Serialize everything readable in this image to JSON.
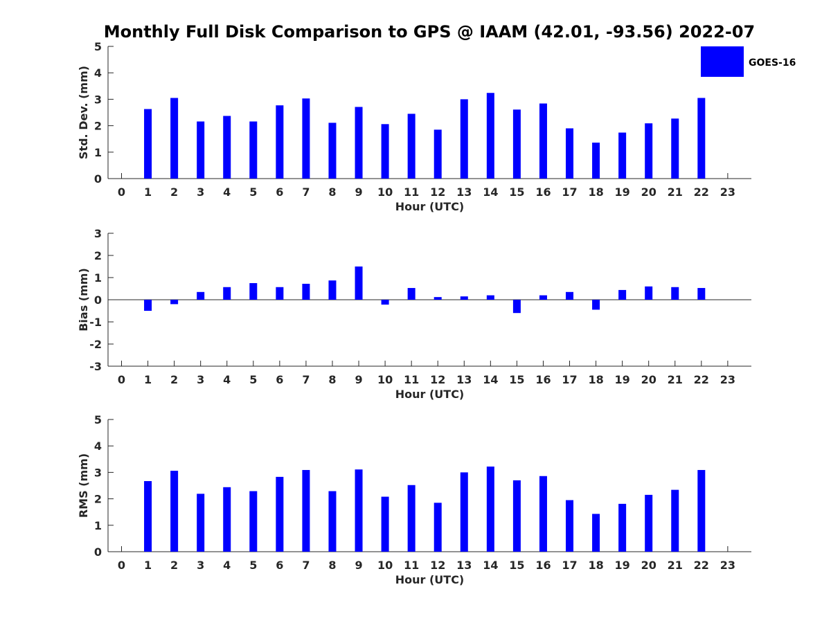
{
  "title": "Monthly Full Disk Comparison to GPS @ IAAM (42.01, -93.56) 2022-07",
  "legend": {
    "label": "GOES-16",
    "color": "#0000ff"
  },
  "chart_data": [
    {
      "type": "bar",
      "id": "stddev",
      "xlabel": "Hour (UTC)",
      "ylabel": "Std. Dev. (mm)",
      "ylim": [
        0,
        5
      ],
      "yticks": [
        0,
        1,
        2,
        3,
        4,
        5
      ],
      "categories": [
        0,
        1,
        2,
        3,
        4,
        5,
        6,
        7,
        8,
        9,
        10,
        11,
        12,
        13,
        14,
        15,
        16,
        17,
        18,
        19,
        20,
        21,
        22,
        23
      ],
      "series": [
        {
          "name": "GOES-16",
          "values": [
            null,
            2.63,
            3.05,
            2.16,
            2.37,
            2.16,
            2.77,
            3.03,
            2.11,
            2.71,
            2.06,
            2.45,
            1.85,
            3.0,
            3.24,
            2.61,
            2.84,
            1.9,
            1.36,
            1.74,
            2.09,
            2.27,
            3.05,
            null
          ]
        }
      ]
    },
    {
      "type": "bar",
      "id": "bias",
      "xlabel": "Hour (UTC)",
      "ylabel": "Bias (mm)",
      "ylim": [
        -3,
        3
      ],
      "yticks": [
        -3,
        -2,
        -1,
        0,
        1,
        2,
        3
      ],
      "zero_line": true,
      "categories": [
        0,
        1,
        2,
        3,
        4,
        5,
        6,
        7,
        8,
        9,
        10,
        11,
        12,
        13,
        14,
        15,
        16,
        17,
        18,
        19,
        20,
        21,
        22,
        23
      ],
      "series": [
        {
          "name": "GOES-16",
          "values": [
            null,
            -0.5,
            -0.2,
            0.35,
            0.57,
            0.75,
            0.57,
            0.72,
            0.87,
            1.5,
            -0.22,
            0.53,
            0.12,
            0.15,
            0.2,
            -0.6,
            0.2,
            0.35,
            -0.45,
            0.44,
            0.6,
            0.57,
            0.53,
            null
          ]
        }
      ]
    },
    {
      "type": "bar",
      "id": "rms",
      "xlabel": "Hour (UTC)",
      "ylabel": "RMS (mm)",
      "ylim": [
        0,
        5
      ],
      "yticks": [
        0,
        1,
        2,
        3,
        4,
        5
      ],
      "categories": [
        0,
        1,
        2,
        3,
        4,
        5,
        6,
        7,
        8,
        9,
        10,
        11,
        12,
        13,
        14,
        15,
        16,
        17,
        18,
        19,
        20,
        21,
        22,
        23
      ],
      "series": [
        {
          "name": "GOES-16",
          "values": [
            null,
            2.67,
            3.06,
            2.19,
            2.44,
            2.29,
            2.83,
            3.09,
            2.29,
            3.11,
            2.08,
            2.52,
            1.85,
            3.0,
            3.22,
            2.7,
            2.86,
            1.95,
            1.43,
            1.81,
            2.15,
            2.34,
            3.09,
            null
          ]
        }
      ]
    }
  ]
}
